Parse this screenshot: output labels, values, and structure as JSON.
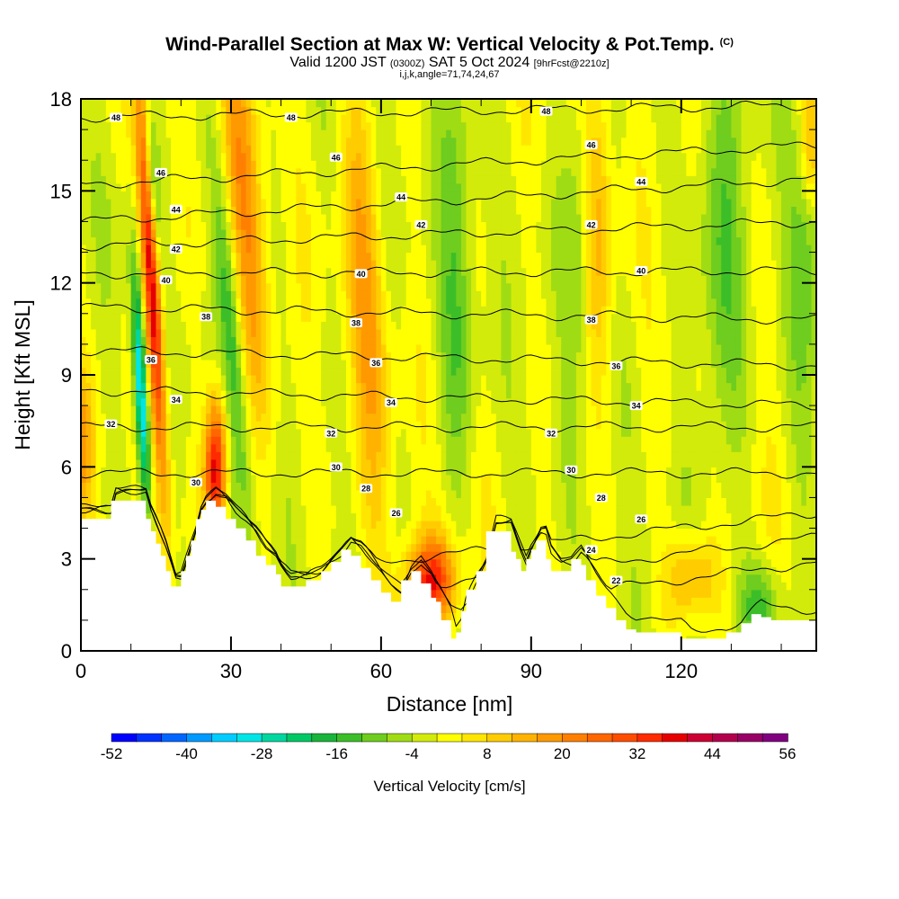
{
  "header": {
    "title": "Wind-Parallel Section at Max W: Vertical Velocity & Pot.Temp.",
    "title_mark": "(C)",
    "valid_prefix": "Valid 1200 JST",
    "valid_utc": "(0300Z)",
    "valid_date": "SAT 5 Oct 2024",
    "forecast": "[9hrFcst@2210z]",
    "params": "i,j,k,angle=71,74,24,67"
  },
  "chart_data": {
    "type": "heatmap",
    "xlabel": "Distance [nm]",
    "ylabel": "Height [Kft MSL]",
    "xlim": [
      0,
      147
    ],
    "ylim": [
      0,
      18
    ],
    "xticks": [
      0,
      30,
      60,
      90,
      120
    ],
    "yticks": [
      0,
      3,
      6,
      9,
      12,
      15,
      18
    ],
    "colorbar": {
      "title": "Vertical Velocity [cm/s]",
      "tick_labels": [
        "-52",
        "-40",
        "-28",
        "-16",
        "-4",
        "8",
        "20",
        "32",
        "44",
        "56"
      ],
      "min": -52,
      "max": 56,
      "step": 4,
      "colors": [
        "#0000ff",
        "#0033ff",
        "#0066ff",
        "#0099ff",
        "#00ccff",
        "#00e5e5",
        "#00d6a0",
        "#00c864",
        "#1ab43c",
        "#3cbe28",
        "#6ecd1e",
        "#a0dc14",
        "#d2eb0a",
        "#ffff00",
        "#ffe600",
        "#ffcc00",
        "#ffb300",
        "#ff9900",
        "#ff8000",
        "#ff6600",
        "#ff4d00",
        "#ff2a00",
        "#e60000",
        "#cc0033",
        "#b3004d",
        "#990066",
        "#800080"
      ]
    },
    "terrain_kft": [
      [
        0,
        4.3
      ],
      [
        6,
        4.3
      ],
      [
        7,
        4.9
      ],
      [
        10,
        4.9
      ],
      [
        13,
        4.9
      ],
      [
        14,
        4.3
      ],
      [
        15,
        3.9
      ],
      [
        16,
        3.5
      ],
      [
        17,
        3.1
      ],
      [
        18,
        2.6
      ],
      [
        19,
        2.1
      ],
      [
        20,
        2.1
      ],
      [
        21,
        2.6
      ],
      [
        22,
        3.1
      ],
      [
        23,
        3.6
      ],
      [
        24,
        4.3
      ],
      [
        25,
        4.6
      ],
      [
        27,
        4.9
      ],
      [
        29,
        4.7
      ],
      [
        31,
        4.3
      ],
      [
        33,
        4.0
      ],
      [
        35,
        3.6
      ],
      [
        37,
        3.1
      ],
      [
        39,
        2.8
      ],
      [
        40,
        2.5
      ],
      [
        42,
        2.1
      ],
      [
        45,
        2.1
      ],
      [
        48,
        2.3
      ],
      [
        50,
        2.6
      ],
      [
        52,
        2.9
      ],
      [
        54,
        3.3
      ],
      [
        56,
        3.1
      ],
      [
        58,
        2.7
      ],
      [
        60,
        2.3
      ],
      [
        62,
        1.9
      ],
      [
        64,
        1.6
      ],
      [
        66,
        2.3
      ],
      [
        68,
        2.6
      ],
      [
        70,
        2.2
      ],
      [
        72,
        1.6
      ],
      [
        74,
        1.0
      ],
      [
        75,
        0.4
      ],
      [
        76,
        0.6
      ],
      [
        77,
        1.3
      ],
      [
        79,
        2.0
      ],
      [
        81,
        2.6
      ],
      [
        83,
        3.9
      ],
      [
        86,
        3.9
      ],
      [
        88,
        3.0
      ],
      [
        89,
        2.6
      ],
      [
        90,
        3.0
      ],
      [
        91,
        3.3
      ],
      [
        92,
        3.6
      ],
      [
        93,
        3.6
      ],
      [
        94,
        3.0
      ],
      [
        96,
        2.6
      ],
      [
        98,
        2.6
      ],
      [
        100,
        3.0
      ],
      [
        101,
        2.8
      ],
      [
        103,
        2.3
      ],
      [
        105,
        1.8
      ],
      [
        107,
        1.4
      ],
      [
        109,
        1.0
      ],
      [
        111,
        0.7
      ],
      [
        113,
        0.6
      ],
      [
        118,
        0.6
      ],
      [
        120,
        0.6
      ],
      [
        122,
        0.4
      ],
      [
        126,
        0.4
      ],
      [
        129,
        0.4
      ],
      [
        132,
        0.6
      ],
      [
        134,
        0.9
      ],
      [
        136,
        1.2
      ],
      [
        138,
        1.1
      ],
      [
        140,
        1.0
      ],
      [
        142,
        1.0
      ],
      [
        144,
        1.0
      ],
      [
        147,
        1.0
      ]
    ],
    "updrafts": [
      {
        "x": 0,
        "z": 6.8,
        "sx": 1.8,
        "sz": 1.6,
        "w": 16
      },
      {
        "x": 14,
        "z": 12.5,
        "sx": 1.2,
        "sz": 5.0,
        "w": 44,
        "tilt": -0.35
      },
      {
        "x": 27,
        "z": 6.0,
        "sx": 1.5,
        "sz": 1.6,
        "w": 40
      },
      {
        "x": 33,
        "z": 14.0,
        "sx": 2.5,
        "sz": 4.5,
        "w": 18,
        "tilt": -0.5
      },
      {
        "x": 57,
        "z": 11.5,
        "sx": 2.5,
        "sz": 5.0,
        "w": 16,
        "tilt": -0.3
      },
      {
        "x": 70,
        "z": 2.3,
        "sx": 3.5,
        "sz": 1.0,
        "w": 34
      },
      {
        "x": 103,
        "z": 14.0,
        "sx": 2.0,
        "sz": 4.0,
        "w": 14
      },
      {
        "x": 122,
        "z": 2.4,
        "sx": 3.5,
        "sz": 1.0,
        "w": 16
      },
      {
        "x": 146,
        "z": 16.5,
        "sx": 1.5,
        "sz": 1.5,
        "w": 14
      }
    ],
    "downdrafts": [
      {
        "x": 12,
        "z": 8.5,
        "sx": 0.9,
        "sz": 2.8,
        "w": -36,
        "tilt": -0.3
      },
      {
        "x": 14,
        "z": 15.5,
        "sx": 1.0,
        "sz": 2.0,
        "w": -20,
        "tilt": -0.4
      },
      {
        "x": 30,
        "z": 10.5,
        "sx": 1.5,
        "sz": 4.0,
        "w": -14,
        "tilt": -0.5
      },
      {
        "x": 75,
        "z": 12.0,
        "sx": 2.5,
        "sz": 5.0,
        "w": -10
      },
      {
        "x": 100,
        "z": 14.0,
        "sx": 2.5,
        "sz": 3.5,
        "w": -10
      },
      {
        "x": 128,
        "z": 12.0,
        "sx": 3.5,
        "sz": 4.0,
        "w": -12
      },
      {
        "x": 145,
        "z": 12.0,
        "sx": 2.5,
        "sz": 4.0,
        "w": -10
      },
      {
        "x": 136,
        "z": 1.5,
        "sx": 3.0,
        "sz": 1.0,
        "w": -12
      }
    ],
    "theta_contours": [
      {
        "value": 22,
        "y_left": -1.2,
        "y_right": -0.6
      },
      {
        "value": 24,
        "y_left": -0.2,
        "y_right": 2.9
      },
      {
        "value": 26,
        "y_left": 0.8,
        "y_right": 3.7
      },
      {
        "value": 28,
        "y_left": 1.8,
        "y_right": 4.5
      },
      {
        "value": 30,
        "y_left": 5.8,
        "y_right": 5.8
      },
      {
        "value": 32,
        "y_left": 7.3,
        "y_right": 7.3
      },
      {
        "value": 34,
        "y_left": 8.5,
        "y_right": 8.0
      },
      {
        "value": 36,
        "y_left": 9.8,
        "y_right": 9.3
      },
      {
        "value": 38,
        "y_left": 11.2,
        "y_right": 10.8
      },
      {
        "value": 40,
        "y_left": 12.3,
        "y_right": 12.4
      },
      {
        "value": 42,
        "y_left": 13.2,
        "y_right": 14.0
      },
      {
        "value": 44,
        "y_left": 14.0,
        "y_right": 15.4
      },
      {
        "value": 46,
        "y_left": 15.2,
        "y_right": 16.5
      },
      {
        "value": 48,
        "y_left": 17.4,
        "y_right": 17.8
      }
    ],
    "contour_labels": [
      {
        "text": "48",
        "x": 7,
        "z": 17.4
      },
      {
        "text": "48",
        "x": 42,
        "z": 17.4
      },
      {
        "text": "48",
        "x": 93,
        "z": 17.6
      },
      {
        "text": "46",
        "x": 16,
        "z": 15.6
      },
      {
        "text": "46",
        "x": 51,
        "z": 16.1
      },
      {
        "text": "46",
        "x": 102,
        "z": 16.5
      },
      {
        "text": "44",
        "x": 19,
        "z": 14.4
      },
      {
        "text": "44",
        "x": 64,
        "z": 14.8
      },
      {
        "text": "44",
        "x": 112,
        "z": 15.3
      },
      {
        "text": "42",
        "x": 19,
        "z": 13.1
      },
      {
        "text": "42",
        "x": 68,
        "z": 13.9
      },
      {
        "text": "42",
        "x": 102,
        "z": 13.9
      },
      {
        "text": "40",
        "x": 17,
        "z": 12.1
      },
      {
        "text": "40",
        "x": 56,
        "z": 12.3
      },
      {
        "text": "40",
        "x": 112,
        "z": 12.4
      },
      {
        "text": "38",
        "x": 25,
        "z": 10.9
      },
      {
        "text": "38",
        "x": 55,
        "z": 10.7
      },
      {
        "text": "38",
        "x": 102,
        "z": 10.8
      },
      {
        "text": "36",
        "x": 14,
        "z": 9.5
      },
      {
        "text": "36",
        "x": 59,
        "z": 9.4
      },
      {
        "text": "36",
        "x": 107,
        "z": 9.3
      },
      {
        "text": "34",
        "x": 19,
        "z": 8.2
      },
      {
        "text": "34",
        "x": 62,
        "z": 8.1
      },
      {
        "text": "34",
        "x": 111,
        "z": 8.0
      },
      {
        "text": "32",
        "x": 6,
        "z": 7.4
      },
      {
        "text": "32",
        "x": 50,
        "z": 7.1
      },
      {
        "text": "32",
        "x": 94,
        "z": 7.1
      },
      {
        "text": "30",
        "x": 23,
        "z": 5.5
      },
      {
        "text": "30",
        "x": 51,
        "z": 6.0
      },
      {
        "text": "30",
        "x": 98,
        "z": 5.9
      },
      {
        "text": "28",
        "x": 57,
        "z": 5.3
      },
      {
        "text": "28",
        "x": 104,
        "z": 5.0
      },
      {
        "text": "26",
        "x": 63,
        "z": 4.5
      },
      {
        "text": "26",
        "x": 112,
        "z": 4.3
      },
      {
        "text": "24",
        "x": 102,
        "z": 3.3
      },
      {
        "text": "22",
        "x": 107,
        "z": 2.3
      }
    ]
  }
}
